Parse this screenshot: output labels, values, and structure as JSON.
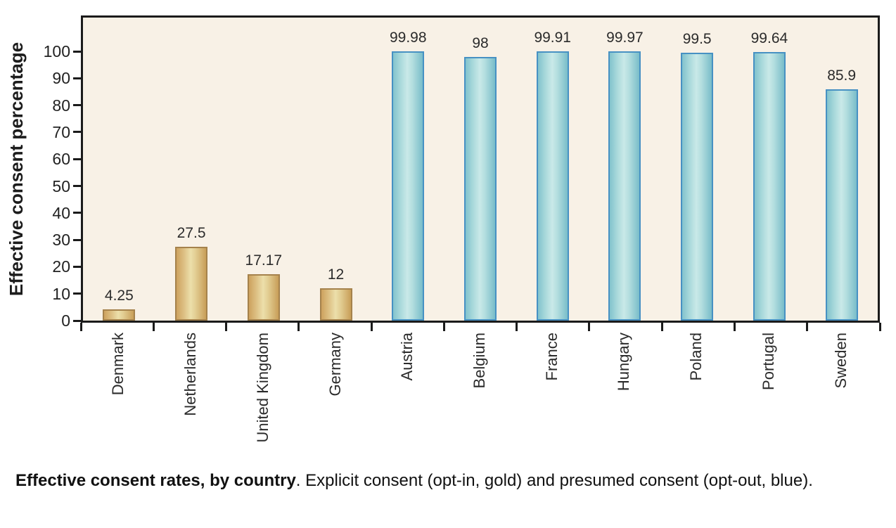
{
  "figure": {
    "caption_bold": "Effective consent rates, by country",
    "caption_rest": ". Explicit consent (opt-in, gold) and presumed consent (opt-out, blue)."
  },
  "chart_data": {
    "type": "bar",
    "title": "",
    "xlabel": "",
    "ylabel": "Effective consent percentage",
    "ylim": [
      0,
      112
    ],
    "yticks": [
      0,
      10,
      20,
      30,
      40,
      50,
      60,
      70,
      80,
      90,
      100
    ],
    "grid": false,
    "legend_position": "none (series encoded by color, explained in caption)",
    "plot_background": "#f8f1e6",
    "categories": [
      "Denmark",
      "Netherlands",
      "United Kingdom",
      "Germany",
      "Austria",
      "Belgium",
      "France",
      "Hungary",
      "Poland",
      "Portugal",
      "Sweden"
    ],
    "bars": [
      {
        "category": "Denmark",
        "value": 4.25,
        "label": "4.25",
        "group": "gold"
      },
      {
        "category": "Netherlands",
        "value": 27.5,
        "label": "27.5",
        "group": "gold"
      },
      {
        "category": "United Kingdom",
        "value": 17.17,
        "label": "17.17",
        "group": "gold"
      },
      {
        "category": "Germany",
        "value": 12,
        "label": "12",
        "group": "gold"
      },
      {
        "category": "Austria",
        "value": 99.98,
        "label": "99.98",
        "group": "blue"
      },
      {
        "category": "Belgium",
        "value": 98,
        "label": "98",
        "group": "blue"
      },
      {
        "category": "France",
        "value": 99.91,
        "label": "99.91",
        "group": "blue"
      },
      {
        "category": "Hungary",
        "value": 99.97,
        "label": "99.97",
        "group": "blue"
      },
      {
        "category": "Poland",
        "value": 99.5,
        "label": "99.5",
        "group": "blue"
      },
      {
        "category": "Portugal",
        "value": 99.64,
        "label": "99.64",
        "group": "blue"
      },
      {
        "category": "Sweden",
        "value": 85.9,
        "label": "85.9",
        "group": "blue"
      }
    ],
    "series": [
      {
        "name": "Explicit consent (opt-in)",
        "group": "gold",
        "color": "#e2cd92",
        "categories": [
          "Denmark",
          "Netherlands",
          "United Kingdom",
          "Germany"
        ],
        "values": [
          4.25,
          27.5,
          17.17,
          12
        ]
      },
      {
        "name": "Presumed consent (opt-out)",
        "group": "blue",
        "color": "#a9d9db",
        "categories": [
          "Austria",
          "Belgium",
          "France",
          "Hungary",
          "Poland",
          "Portugal",
          "Sweden"
        ],
        "values": [
          99.98,
          98,
          99.91,
          99.97,
          99.5,
          99.64,
          85.9
        ]
      }
    ],
    "colors": {
      "gold_border": "#a5824c",
      "gold_fill_center": "#ecdfaa",
      "gold_fill_edge": "#cda25e",
      "blue_border": "#4791c3",
      "blue_fill_center": "#c9e9e8",
      "blue_fill_edge": "#82c3cd",
      "axis": "#1b1b1b",
      "text": "#2b2b2b"
    }
  }
}
